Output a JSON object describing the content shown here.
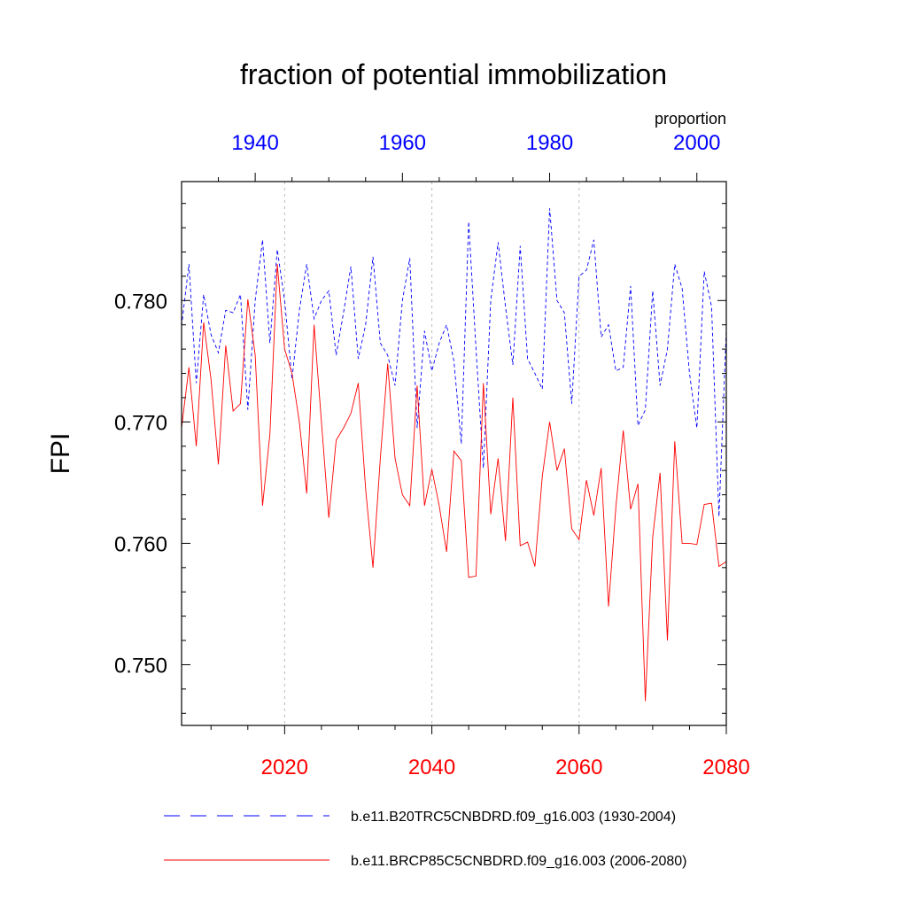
{
  "chart_data": {
    "type": "line",
    "title": "fraction of potential immobilization",
    "ylabel": "FPI",
    "units_label": "proportion",
    "ylim": [
      0.745,
      0.7898
    ],
    "y_ticks": [
      0.75,
      0.76,
      0.77,
      0.78
    ],
    "y_tick_labels": [
      "0.750",
      "0.760",
      "0.770",
      "0.780"
    ],
    "y_minor_step": 0.002,
    "x_top": {
      "range": [
        1930,
        2004
      ],
      "ticks": [
        1940,
        1960,
        1980,
        2000
      ],
      "tick_labels": [
        "1940",
        "1960",
        "1980",
        "2000"
      ],
      "color": "#0000ff"
    },
    "x_bottom": {
      "range": [
        2006,
        2080
      ],
      "ticks": [
        2020,
        2040,
        2060,
        2080
      ],
      "tick_labels": [
        "2020",
        "2040",
        "2060",
        "2080"
      ],
      "color": "#ff0000"
    },
    "gridlines_x": [
      2020,
      2040,
      2060
    ],
    "legend_position": "bottom",
    "series": [
      {
        "name": "b.e11.B20TRC5CNBDRD.f09_g16.003 (1930-2004)",
        "axis": "top",
        "color": "#0000ff",
        "dash": "dashed",
        "x_start": 1930,
        "values": [
          0.7779,
          0.783,
          0.7732,
          0.7805,
          0.7772,
          0.7757,
          0.7792,
          0.779,
          0.7805,
          0.771,
          0.78,
          0.785,
          0.7765,
          0.7842,
          0.78,
          0.7735,
          0.7792,
          0.783,
          0.7785,
          0.78,
          0.7808,
          0.7755,
          0.779,
          0.7828,
          0.7752,
          0.778,
          0.7836,
          0.7765,
          0.7755,
          0.773,
          0.78,
          0.7835,
          0.7695,
          0.7775,
          0.7742,
          0.7765,
          0.778,
          0.775,
          0.7682,
          0.7865,
          0.776,
          0.7662,
          0.78,
          0.7848,
          0.7795,
          0.7747,
          0.7845,
          0.7752,
          0.774,
          0.7727,
          0.7876,
          0.78,
          0.779,
          0.7715,
          0.782,
          0.7825,
          0.785,
          0.777,
          0.778,
          0.7742,
          0.7745,
          0.7812,
          0.7697,
          0.771,
          0.7808,
          0.773,
          0.776,
          0.783,
          0.781,
          0.774,
          0.7695,
          0.7824,
          0.7795,
          0.7622,
          0.7776
        ]
      },
      {
        "name": "b.e11.BRCP85C5CNBDRD.f09_g16.003 (2006-2080)",
        "axis": "bottom",
        "color": "#ff0000",
        "dash": "solid",
        "x_start": 2006,
        "values": [
          0.7695,
          0.7745,
          0.768,
          0.7782,
          0.7735,
          0.7665,
          0.7763,
          0.7709,
          0.7715,
          0.7801,
          0.7755,
          0.7631,
          0.769,
          0.783,
          0.776,
          0.774,
          0.77,
          0.7641,
          0.778,
          0.77,
          0.7621,
          0.7685,
          0.7695,
          0.7707,
          0.7732,
          0.7645,
          0.758,
          0.767,
          0.7748,
          0.767,
          0.764,
          0.7631,
          0.773,
          0.7631,
          0.7661,
          0.7631,
          0.7593,
          0.7676,
          0.7668,
          0.7572,
          0.7573,
          0.7732,
          0.7624,
          0.767,
          0.7602,
          0.772,
          0.7598,
          0.7601,
          0.7581,
          0.7655,
          0.77,
          0.766,
          0.7678,
          0.7612,
          0.7603,
          0.7652,
          0.7623,
          0.7662,
          0.7548,
          0.763,
          0.7693,
          0.7628,
          0.7649,
          0.747,
          0.7605,
          0.7658,
          0.752,
          0.7684,
          0.76,
          0.76,
          0.7599,
          0.7632,
          0.7633,
          0.7581,
          0.7585
        ]
      }
    ]
  }
}
